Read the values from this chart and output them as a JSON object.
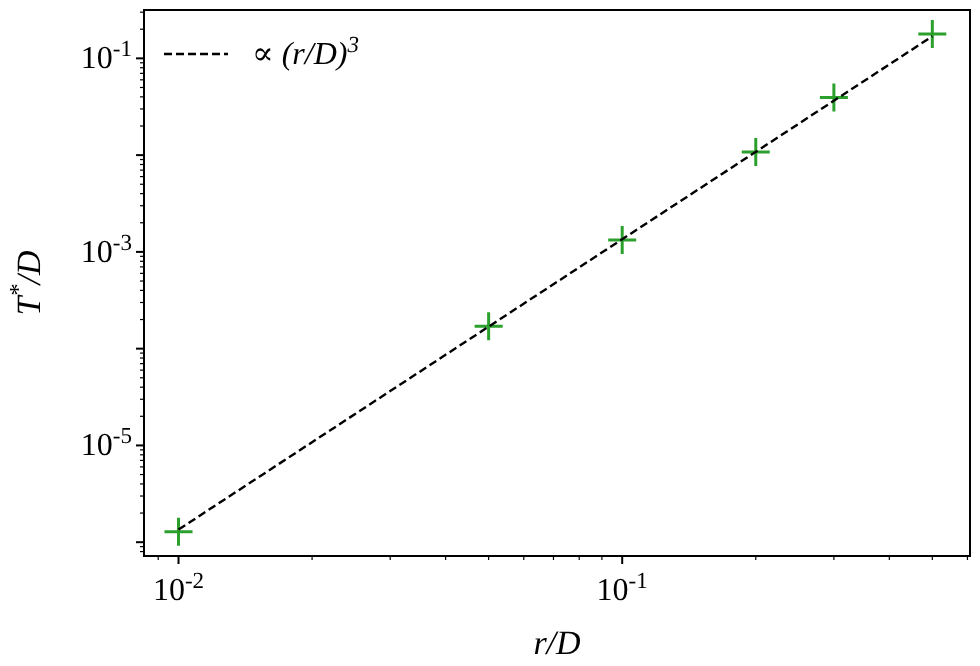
{
  "chart_data": {
    "type": "scatter",
    "xlabel": "r/D",
    "ylabel": "T$^{*}$/D",
    "log": "xy",
    "marker": "cross",
    "xlim": [
      0.00836,
      0.608
    ],
    "ylim": [
      7.2e-07,
      0.316
    ],
    "xticks": [
      {
        "value": 0.01,
        "label": "10$^{-2}$"
      },
      {
        "value": 0.1,
        "label": "10$^{-1}$"
      }
    ],
    "yticks": [
      {
        "value": 1e-06,
        "label": null
      },
      {
        "value": 1e-05,
        "label": "10$^{-5}$"
      },
      {
        "value": 0.0001,
        "label": null
      },
      {
        "value": 0.001,
        "label": "10$^{-3}$"
      },
      {
        "value": 0.01,
        "label": null
      },
      {
        "value": 0.1,
        "label": "10$^{-1}$"
      }
    ],
    "legend": "top left",
    "grid": false,
    "series": [
      {
        "color": "#2ca02c",
        "x": [
          0.01,
          0.05,
          0.1,
          0.2,
          0.3,
          0.5
        ],
        "values": [
          1.28e-06,
          0.00017,
          0.00133,
          0.0108,
          0.0394,
          0.179
        ]
      },
      {
        "type": "line",
        "name": "∝ (r/D)$^{3}$",
        "color": "#000000",
        "marker": "none",
        "line_style": "dashed",
        "x": [
          0.01,
          0.5
        ],
        "values": [
          1.35e-06,
          0.169
        ]
      }
    ]
  }
}
